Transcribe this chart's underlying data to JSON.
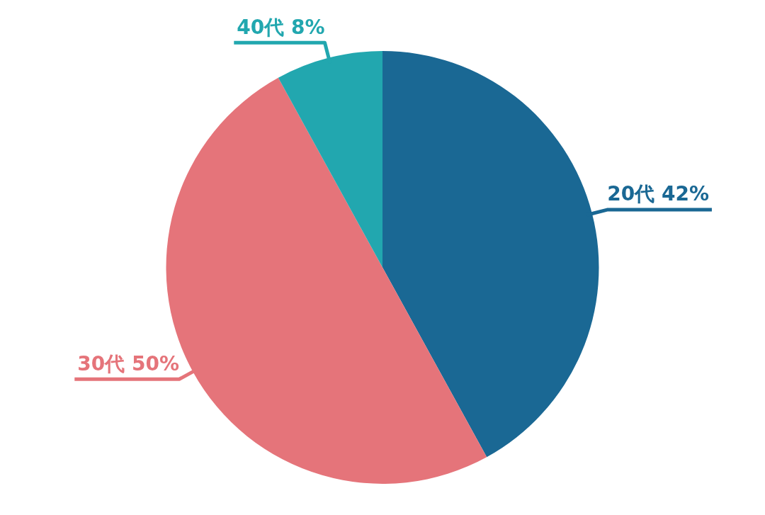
{
  "chart_data": {
    "type": "pie",
    "categories": [
      "20代",
      "30代",
      "40代"
    ],
    "values": [
      42,
      50,
      8
    ],
    "value_labels": [
      "42%",
      "50%",
      "8%"
    ],
    "colors": [
      "#1a6894",
      "#e5747a",
      "#22a7af"
    ],
    "legend": false
  }
}
